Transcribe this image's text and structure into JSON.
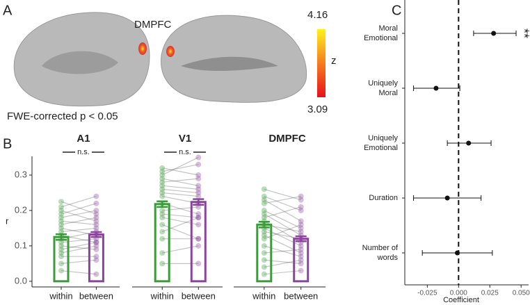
{
  "panel_labels": [
    "A",
    "B",
    "C"
  ],
  "brain_map": {
    "annotation": "DMPFC",
    "note": "FWE-corrected p < 0.05",
    "colorbar": {
      "label": "z",
      "lim": [
        3.09,
        4.16
      ],
      "ticks": [
        4.16,
        3.09
      ]
    }
  },
  "chart_data": [
    {
      "type": "paired-bar",
      "title": "A1",
      "annotation": "n.s.",
      "ylabel": "r",
      "categories": [
        "within",
        "between"
      ],
      "values": [
        0.125,
        0.132
      ],
      "errors": [
        0.008,
        0.007
      ],
      "colors": [
        "#3c9a3c",
        "#8a449c"
      ],
      "ylim": [
        -0.016,
        0.353
      ],
      "yticks": [
        {
          "value": 0,
          "label": "0.0"
        },
        0.1,
        0.2,
        0.3
      ],
      "pairs": [
        [
          0.225,
          0.19
        ],
        [
          0.21,
          0.24
        ],
        [
          0.2,
          0.17
        ],
        [
          0.19,
          0.22
        ],
        [
          0.18,
          0.2
        ],
        [
          0.17,
          0.16
        ],
        [
          0.16,
          0.18
        ],
        [
          0.15,
          0.13
        ],
        [
          0.14,
          0.15
        ],
        [
          0.13,
          0.11
        ],
        [
          0.12,
          0.14
        ],
        [
          0.11,
          0.12
        ],
        [
          0.1,
          0.09
        ],
        [
          0.09,
          0.11
        ],
        [
          0.08,
          0.1
        ],
        [
          0.07,
          0.07
        ],
        [
          0.05,
          0.06
        ],
        [
          0.03,
          0.02
        ]
      ]
    },
    {
      "type": "paired-bar",
      "title": "V1",
      "annotation": "n.s.",
      "categories": [
        "within",
        "between"
      ],
      "values": [
        0.218,
        0.224
      ],
      "errors": [
        0.008,
        0.008
      ],
      "colors": [
        "#3c9a3c",
        "#8a449c"
      ],
      "ylim": [
        -0.016,
        0.353
      ],
      "pairs": [
        [
          0.32,
          0.3
        ],
        [
          0.31,
          0.33
        ],
        [
          0.3,
          0.35
        ],
        [
          0.29,
          0.27
        ],
        [
          0.28,
          0.29
        ],
        [
          0.27,
          0.26
        ],
        [
          0.26,
          0.25
        ],
        [
          0.25,
          0.24
        ],
        [
          0.24,
          0.22
        ],
        [
          0.22,
          0.19
        ],
        [
          0.2,
          0.21
        ],
        [
          0.19,
          0.18
        ],
        [
          0.18,
          0.16
        ],
        [
          0.16,
          0.12
        ],
        [
          0.14,
          0.18
        ],
        [
          0.12,
          0.12
        ],
        [
          0.08,
          0.1
        ],
        [
          0.05,
          0.05
        ]
      ]
    },
    {
      "type": "paired-bar",
      "title": "DMPFC",
      "categories": [
        "within",
        "between"
      ],
      "values": [
        0.16,
        0.12
      ],
      "errors": [
        0.008,
        0.007
      ],
      "colors": [
        "#3c9a3c",
        "#8a449c"
      ],
      "ylim": [
        -0.016,
        0.353
      ],
      "pairs": [
        [
          0.26,
          0.23
        ],
        [
          0.24,
          0.2
        ],
        [
          0.23,
          0.17
        ],
        [
          0.22,
          0.24
        ],
        [
          0.2,
          0.15
        ],
        [
          0.19,
          0.13
        ],
        [
          0.18,
          0.21
        ],
        [
          0.17,
          0.11
        ],
        [
          0.16,
          0.14
        ],
        [
          0.15,
          0.1
        ],
        [
          0.14,
          0.12
        ],
        [
          0.13,
          0.08
        ],
        [
          0.12,
          0.16
        ],
        [
          0.1,
          0.07
        ],
        [
          0.08,
          0.09
        ],
        [
          0.06,
          0.05
        ],
        [
          0.04,
          0.06
        ],
        [
          0.02,
          0.03
        ]
      ]
    },
    {
      "type": "forest",
      "annotation": "**",
      "xlabel": "Coefficient",
      "categories": [
        [
          "Moral",
          "Emotional"
        ],
        [
          "Uniquely",
          "Moral"
        ],
        [
          "Uniquely",
          "Emotional"
        ],
        [
          "Duration"
        ],
        [
          "Number of",
          "words"
        ]
      ],
      "values": [
        0.028,
        -0.018,
        0.008,
        -0.009,
        -0.001
      ],
      "ci": [
        [
          0.012,
          0.046
        ],
        [
          -0.036,
          0.001
        ],
        [
          -0.009,
          0.026
        ],
        [
          -0.036,
          0.018
        ],
        [
          -0.029,
          0.027
        ]
      ],
      "reference": 0,
      "xlim": [
        -0.043,
        0.056
      ],
      "xticks": [
        -0.025,
        {
          "value": 0,
          "label": "0.000"
        },
        0.025,
        {
          "value": 0.05,
          "label": "0.050"
        }
      ]
    }
  ]
}
